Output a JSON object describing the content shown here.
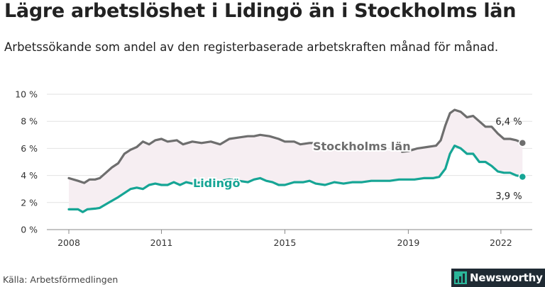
{
  "title": "Lägre arbetslöshet i Lidingö än i Stockholms län",
  "subtitle": "Arbetssökande som andel av den registerbaserade arbetskraften månad för månad.",
  "source": "Källa: Arbetsförmedlingen",
  "brand": "Newsworthy",
  "colors": {
    "stockholm": "#6e6e6e",
    "lidingo": "#16a595",
    "band": "#f6eef2",
    "grid": "#e2e2e2",
    "axis": "#888888"
  },
  "chart_data": {
    "type": "line",
    "title": "Lägre arbetslöshet i Lidingö än i Stockholms län",
    "subtitle": "Arbetssökande som andel av den registerbaserade arbetskraften månad för månad.",
    "xlim": [
      2008.0,
      2022.9
    ],
    "ylim": [
      0,
      10
    ],
    "y_ticks": [
      "0 %",
      "2 %",
      "4 %",
      "6 %",
      "8 %",
      "10 %"
    ],
    "y_tick_values": [
      0,
      2,
      4,
      6,
      8,
      10
    ],
    "x_ticks": [
      "2008",
      "2011",
      "2015",
      "2019",
      "2022"
    ],
    "x_tick_values": [
      2008,
      2011,
      2015,
      2019,
      2022
    ],
    "grid": "horizontal",
    "series": [
      {
        "name": "Stockholms län",
        "end_label": "6,4 %",
        "data": [
          [
            2008.0,
            3.8
          ],
          [
            2008.3,
            3.6
          ],
          [
            2008.5,
            3.45
          ],
          [
            2008.67,
            3.7
          ],
          [
            2008.85,
            3.7
          ],
          [
            2009.0,
            3.8
          ],
          [
            2009.2,
            4.2
          ],
          [
            2009.4,
            4.6
          ],
          [
            2009.6,
            4.9
          ],
          [
            2009.8,
            5.6
          ],
          [
            2010.0,
            5.9
          ],
          [
            2010.2,
            6.1
          ],
          [
            2010.4,
            6.5
          ],
          [
            2010.6,
            6.3
          ],
          [
            2010.8,
            6.6
          ],
          [
            2011.0,
            6.7
          ],
          [
            2011.2,
            6.5
          ],
          [
            2011.5,
            6.6
          ],
          [
            2011.7,
            6.3
          ],
          [
            2012.0,
            6.5
          ],
          [
            2012.3,
            6.4
          ],
          [
            2012.6,
            6.5
          ],
          [
            2012.9,
            6.3
          ],
          [
            2013.2,
            6.7
          ],
          [
            2013.5,
            6.8
          ],
          [
            2013.8,
            6.9
          ],
          [
            2014.0,
            6.9
          ],
          [
            2014.2,
            7.0
          ],
          [
            2014.5,
            6.9
          ],
          [
            2014.8,
            6.7
          ],
          [
            2015.0,
            6.5
          ],
          [
            2015.3,
            6.5
          ],
          [
            2015.5,
            6.3
          ],
          [
            2015.8,
            6.4
          ],
          [
            2016.0,
            6.4
          ],
          [
            2016.2,
            6.3
          ],
          [
            2018.8,
            5.75
          ],
          [
            2019.0,
            5.8
          ],
          [
            2019.3,
            6.0
          ],
          [
            2019.6,
            6.1
          ],
          [
            2019.9,
            6.2
          ],
          [
            2020.05,
            6.6
          ],
          [
            2020.2,
            7.7
          ],
          [
            2020.35,
            8.6
          ],
          [
            2020.5,
            8.85
          ],
          [
            2020.7,
            8.7
          ],
          [
            2020.9,
            8.3
          ],
          [
            2021.1,
            8.4
          ],
          [
            2021.3,
            8.0
          ],
          [
            2021.5,
            7.6
          ],
          [
            2021.7,
            7.6
          ],
          [
            2021.9,
            7.1
          ],
          [
            2022.1,
            6.7
          ],
          [
            2022.3,
            6.7
          ],
          [
            2022.5,
            6.6
          ],
          [
            2022.7,
            6.4
          ]
        ]
      },
      {
        "name": "Lidingö",
        "end_label": "3,9 %",
        "data": [
          [
            2008.0,
            1.5
          ],
          [
            2008.3,
            1.5
          ],
          [
            2008.45,
            1.3
          ],
          [
            2008.6,
            1.5
          ],
          [
            2008.85,
            1.55
          ],
          [
            2009.0,
            1.6
          ],
          [
            2009.3,
            2.0
          ],
          [
            2009.6,
            2.4
          ],
          [
            2009.8,
            2.7
          ],
          [
            2010.0,
            3.0
          ],
          [
            2010.2,
            3.1
          ],
          [
            2010.4,
            3.0
          ],
          [
            2010.6,
            3.3
          ],
          [
            2010.8,
            3.4
          ],
          [
            2011.0,
            3.3
          ],
          [
            2011.2,
            3.3
          ],
          [
            2011.4,
            3.5
          ],
          [
            2011.6,
            3.3
          ],
          [
            2011.8,
            3.5
          ],
          [
            2012.0,
            3.4
          ],
          [
            2012.3,
            3.5
          ],
          [
            2012.6,
            3.6
          ],
          [
            2012.9,
            3.6
          ],
          [
            2013.2,
            3.7
          ],
          [
            2013.5,
            3.6
          ],
          [
            2013.8,
            3.5
          ],
          [
            2014.0,
            3.7
          ],
          [
            2014.2,
            3.8
          ],
          [
            2014.4,
            3.6
          ],
          [
            2014.6,
            3.5
          ],
          [
            2014.8,
            3.3
          ],
          [
            2015.0,
            3.3
          ],
          [
            2015.3,
            3.5
          ],
          [
            2015.6,
            3.5
          ],
          [
            2015.8,
            3.6
          ],
          [
            2016.0,
            3.4
          ],
          [
            2016.3,
            3.3
          ],
          [
            2016.6,
            3.5
          ],
          [
            2016.9,
            3.4
          ],
          [
            2017.2,
            3.5
          ],
          [
            2017.5,
            3.5
          ],
          [
            2017.8,
            3.6
          ],
          [
            2018.1,
            3.6
          ],
          [
            2018.4,
            3.6
          ],
          [
            2018.7,
            3.7
          ],
          [
            2018.9,
            3.7
          ],
          [
            2019.2,
            3.7
          ],
          [
            2019.5,
            3.8
          ],
          [
            2019.8,
            3.8
          ],
          [
            2020.0,
            3.9
          ],
          [
            2020.2,
            4.5
          ],
          [
            2020.35,
            5.6
          ],
          [
            2020.5,
            6.2
          ],
          [
            2020.7,
            6.0
          ],
          [
            2020.9,
            5.6
          ],
          [
            2021.1,
            5.6
          ],
          [
            2021.3,
            5.0
          ],
          [
            2021.5,
            5.0
          ],
          [
            2021.7,
            4.7
          ],
          [
            2021.9,
            4.3
          ],
          [
            2022.1,
            4.2
          ],
          [
            2022.3,
            4.2
          ],
          [
            2022.5,
            4.0
          ],
          [
            2022.7,
            3.9
          ]
        ]
      }
    ]
  }
}
